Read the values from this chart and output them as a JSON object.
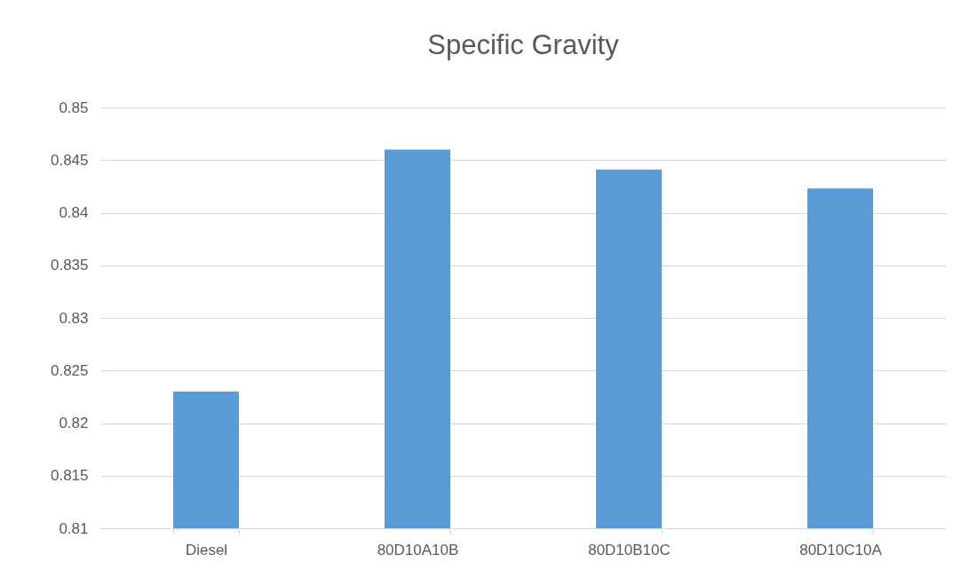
{
  "chart_data": {
    "type": "bar",
    "title": "Specific Gravity",
    "categories": [
      "Diesel",
      "80D10A10B",
      "80D10B10C",
      "80D10C10A"
    ],
    "values": [
      0.823,
      0.846,
      0.8441,
      0.8423
    ],
    "color": "#5b9bd5",
    "ylim": [
      0.81,
      0.85
    ],
    "yticks": [
      0.81,
      0.815,
      0.82,
      0.825,
      0.83,
      0.835,
      0.84,
      0.845,
      0.85
    ],
    "grid": "y"
  }
}
